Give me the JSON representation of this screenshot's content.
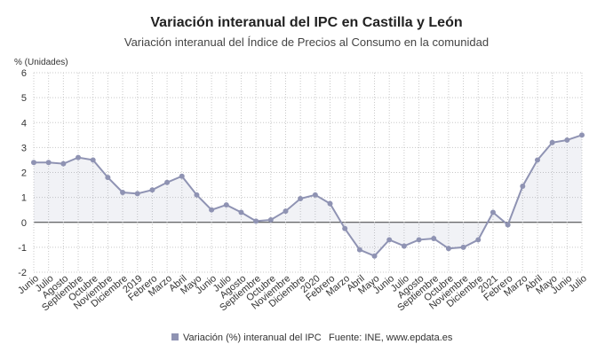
{
  "chart_data": {
    "type": "line",
    "title": "Variación interanual del IPC en Castilla y León",
    "subtitle": "Variación interanual del Índice de Precios al Consumo en la comunidad",
    "y_axis_label": "% (Unidades)",
    "source": "Fuente: INE, www.epdata.es",
    "categories": [
      "Junio",
      "Julio",
      "Agosto",
      "Septiembre",
      "Octubre",
      "Noviembre",
      "Diciembre",
      "2019",
      "Febrero",
      "Marzo",
      "Abril",
      "Mayo",
      "Junio",
      "Julio",
      "Agosto",
      "Septiembre",
      "Octubre",
      "Noviembre",
      "Diciembre",
      "2020",
      "Febrero",
      "Marzo",
      "Abril",
      "Mayo",
      "Junio",
      "Julio",
      "Agosto",
      "Septiembre",
      "Octubre",
      "Noviembre",
      "Diciembre",
      "2021",
      "Febrero",
      "Marzo",
      "Abril",
      "Mayo",
      "Junio",
      "Julio"
    ],
    "series": [
      {
        "name": "Variación (%) interanual del IPC",
        "color": "#8f93b3",
        "values": [
          2.4,
          2.4,
          2.35,
          2.6,
          2.5,
          1.8,
          1.2,
          1.15,
          1.3,
          1.6,
          1.85,
          1.1,
          0.5,
          0.7,
          0.4,
          0.05,
          0.1,
          0.45,
          0.95,
          1.1,
          0.75,
          -0.25,
          -1.1,
          -1.35,
          -0.7,
          -0.95,
          -0.7,
          -0.65,
          -1.05,
          -1.0,
          -0.7,
          0.4,
          -0.1,
          1.45,
          2.5,
          3.2,
          3.3,
          3.5
        ]
      }
    ],
    "ylim": [
      -2,
      6
    ],
    "yticks": [
      -2,
      -1,
      0,
      1,
      2,
      3,
      4,
      5,
      6
    ],
    "grid": true
  }
}
